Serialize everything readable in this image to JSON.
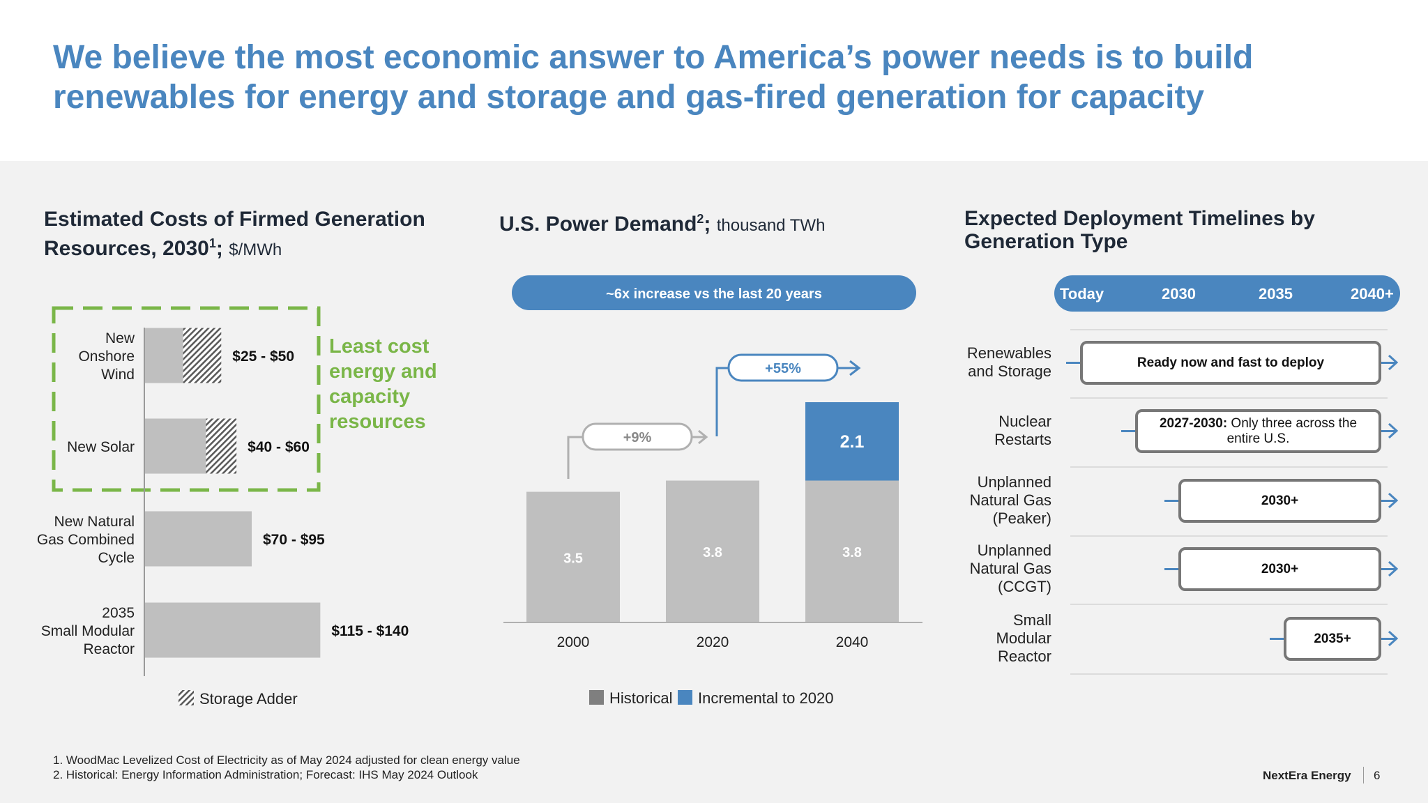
{
  "title": "We believe the most economic answer to America’s power needs is to build renewables for energy and storage and gas-fired generation for capacity",
  "colors": {
    "accent": "#4a86bf",
    "green": "#7ab648",
    "gray_bar": "#bfbfbf",
    "historical": "#7f7f7f"
  },
  "left": {
    "title_line1": "Estimated Costs of Firmed Generation",
    "title_line2": "Resources, 2030",
    "title_sup": "1",
    "title_sep": ";",
    "unit": "$/MWh",
    "callout": [
      "Least cost",
      "energy and",
      "capacity",
      "resources"
    ],
    "legend": "Storage Adder"
  },
  "middle": {
    "title": "U.S. Power Demand",
    "title_sup": "2",
    "title_sep": ";",
    "unit": "thousand TWh",
    "banner": "~6x increase vs the last 20 years",
    "growth_labels": [
      "+9%",
      "+55%"
    ],
    "legend": [
      "Historical",
      "Incremental to 2020"
    ]
  },
  "right": {
    "title_line1": "Expected Deployment Timelines by",
    "title_line2": "Generation Type",
    "ticks": [
      "Today",
      "2030",
      "2035",
      "2040+"
    ],
    "rows": [
      {
        "label": [
          "Renewables",
          "and Storage"
        ],
        "box_bold": "Ready now and fast to deploy",
        "box_text": ""
      },
      {
        "label": [
          "Nuclear",
          "Restarts"
        ],
        "box_bold": "2027-2030:",
        "box_text": " Only three across the entire U.S."
      },
      {
        "label": [
          "Unplanned",
          "Natural Gas",
          "(Peaker)"
        ],
        "box_bold": "2030+",
        "box_text": ""
      },
      {
        "label": [
          "Unplanned",
          "Natural Gas",
          "(CCGT)"
        ],
        "box_bold": "2030+",
        "box_text": ""
      },
      {
        "label": [
          "Small",
          "Modular",
          "Reactor"
        ],
        "box_bold": "2035+",
        "box_text": ""
      }
    ]
  },
  "footnotes": [
    "1.  WoodMac Levelized Cost of Electricity as of May 2024 adjusted for clean energy value",
    "2.  Historical: Energy Information Administration; Forecast: IHS May 2024 Outlook"
  ],
  "footer": {
    "brand": "NextEra Energy",
    "page": "6"
  },
  "chart_data": [
    {
      "type": "bar",
      "orientation": "horizontal",
      "categories": [
        [
          "New",
          "Onshore",
          "Wind"
        ],
        [
          "New Solar"
        ],
        [
          "New Natural",
          "Gas Combined",
          "Cycle"
        ],
        [
          "2035",
          "Small Modular",
          "Reactor"
        ]
      ],
      "value_labels": [
        "$25 - $50",
        "$40 - $60",
        "$70 - $95",
        "$115 - $140"
      ],
      "series": [
        {
          "name": "",
          "values": [
            25,
            40,
            70,
            115
          ]
        },
        {
          "name": "Storage Adder",
          "values": [
            25,
            20,
            0,
            0
          ]
        }
      ],
      "xlim": [
        0,
        140
      ]
    },
    {
      "type": "bar",
      "stacked": true,
      "categories": [
        "2000",
        "2020",
        "2040"
      ],
      "series": [
        {
          "name": "Historical",
          "values": [
            3.5,
            3.8,
            3.8
          ]
        },
        {
          "name": "Incremental to 2020",
          "values": [
            0,
            0,
            2.1
          ]
        }
      ],
      "ylim": [
        0,
        6.2
      ]
    }
  ]
}
